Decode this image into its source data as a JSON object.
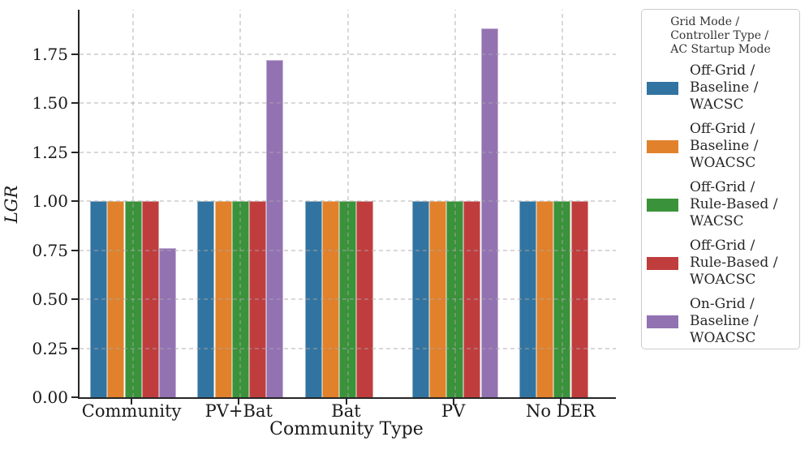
{
  "chart_data": {
    "type": "bar",
    "title": "",
    "xlabel": "Community Type",
    "ylabel": "LGR",
    "categories": [
      "Community",
      "PV+Bat",
      "Bat",
      "PV",
      "No DER"
    ],
    "series": [
      {
        "name": "Off-Grid / Baseline / WACSC",
        "color": "#3274A1",
        "values": [
          1.0,
          1.0,
          1.0,
          1.0,
          1.0
        ]
      },
      {
        "name": "Off-Grid / Baseline / WOACSC",
        "color": "#E1812C",
        "values": [
          1.0,
          1.0,
          1.0,
          1.0,
          1.0
        ]
      },
      {
        "name": "Off-Grid / Rule-Based / WACSC",
        "color": "#3A923A",
        "values": [
          1.0,
          1.0,
          1.0,
          1.0,
          1.0
        ]
      },
      {
        "name": "Off-Grid / Rule-Based / WOACSC",
        "color": "#C03D3E",
        "values": [
          1.0,
          1.0,
          1.0,
          1.0,
          1.0
        ]
      },
      {
        "name": "On-Grid / Baseline / WOACSC",
        "color": "#9372B2",
        "values": [
          0.76,
          1.72,
          null,
          1.88,
          null
        ]
      }
    ],
    "ylim": [
      0,
      1.98
    ],
    "yticks": [
      0.0,
      0.25,
      0.5,
      0.75,
      1.0,
      1.25,
      1.5,
      1.75
    ],
    "grid": true,
    "grid_style": "dashed",
    "legend": {
      "position": "upper-right-outside",
      "title_lines": [
        "Grid Mode /",
        "Controller Type /",
        "AC Startup Mode"
      ],
      "entries": [
        {
          "lines": [
            "Off-Grid /",
            "Baseline /",
            "WACSC"
          ],
          "color": "#3274A1"
        },
        {
          "lines": [
            "Off-Grid /",
            "Baseline /",
            "WOACSC"
          ],
          "color": "#E1812C"
        },
        {
          "lines": [
            "Off-Grid /",
            "Rule-Based /",
            "WACSC"
          ],
          "color": "#3A923A"
        },
        {
          "lines": [
            "Off-Grid /",
            "Rule-Based /",
            "WOACSC"
          ],
          "color": "#C03D3E"
        },
        {
          "lines": [
            "On-Grid /",
            "Baseline /",
            "WOACSC"
          ],
          "color": "#9372B2"
        }
      ]
    },
    "axis_color": "#262626",
    "text_color": "#1a1a1a"
  }
}
